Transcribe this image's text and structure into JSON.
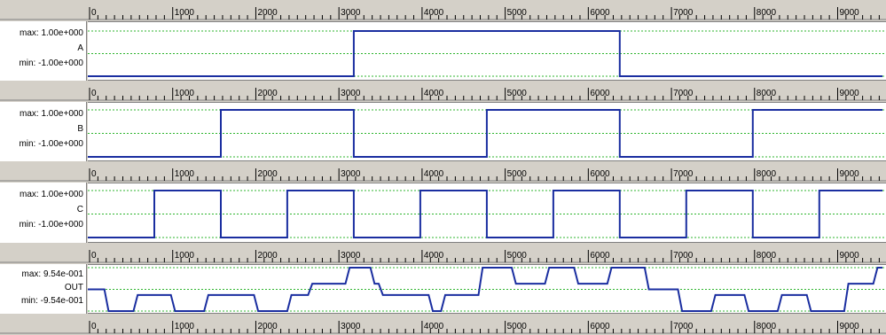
{
  "axis": {
    "tick_labels": [
      "0",
      "1000",
      "2000",
      "3000",
      "4000",
      "5000",
      "6000",
      "7000",
      "8000",
      "9000"
    ],
    "xmin": 0,
    "xmax": 9560
  },
  "colors": {
    "signal": "#1a2ea0",
    "grid": "#2fb52f",
    "ruler_bg": "#d4d0c8"
  },
  "panels": [
    {
      "name": "A",
      "max_label": "max: 1.00e+000",
      "min_label": "min: -1.00e+000",
      "chart_data": {
        "type": "line",
        "ylim": [
          -1,
          1
        ],
        "x": [
          0,
          3200,
          3200,
          6400,
          6400,
          9560
        ],
        "y": [
          -1,
          -1,
          1,
          1,
          -1,
          -1
        ]
      }
    },
    {
      "name": "B",
      "max_label": "max: 1.00e+000",
      "min_label": "min: -1.00e+000",
      "chart_data": {
        "type": "line",
        "ylim": [
          -1,
          1
        ],
        "x": [
          0,
          1600,
          1600,
          3200,
          3200,
          4800,
          4800,
          6400,
          6400,
          8000,
          8000,
          9560
        ],
        "y": [
          -1,
          -1,
          1,
          1,
          -1,
          -1,
          1,
          1,
          -1,
          -1,
          1,
          1
        ]
      }
    },
    {
      "name": "C",
      "max_label": "max: 1.00e+000",
      "min_label": "min: -1.00e+000",
      "chart_data": {
        "type": "line",
        "ylim": [
          -1,
          1
        ],
        "x": [
          0,
          800,
          800,
          1600,
          1600,
          2400,
          2400,
          3200,
          3200,
          4000,
          4000,
          4800,
          4800,
          5600,
          5600,
          6400,
          6400,
          7200,
          7200,
          8000,
          8000,
          8800,
          8800,
          9560
        ],
        "y": [
          -1,
          -1,
          1,
          1,
          -1,
          -1,
          1,
          1,
          -1,
          -1,
          1,
          1,
          -1,
          -1,
          1,
          1,
          -1,
          -1,
          1,
          1,
          -1,
          -1,
          1,
          1
        ]
      }
    },
    {
      "name": "OUT",
      "max_label": "max: 9.54e-001",
      "min_label": "min: -9.54e-001",
      "chart_data": {
        "type": "line",
        "ylim": [
          -0.954,
          0.954
        ],
        "x": [
          0,
          200,
          250,
          550,
          600,
          1000,
          1050,
          1400,
          1450,
          2000,
          2050,
          2400,
          2450,
          2650,
          2700,
          3100,
          3150,
          3400,
          3450,
          3500,
          3550,
          4100,
          4150,
          4250,
          4300,
          4700,
          4750,
          5100,
          5150,
          5500,
          5550,
          5850,
          5900,
          6250,
          6300,
          6700,
          6750,
          7100,
          7150,
          7500,
          7550,
          7900,
          7950,
          8300,
          8350,
          8650,
          8700,
          9100,
          9150,
          9450,
          9500,
          9560
        ],
        "y": [
          0,
          0,
          -0.954,
          -0.954,
          -0.25,
          -0.25,
          -0.954,
          -0.954,
          -0.25,
          -0.25,
          -0.954,
          -0.954,
          -0.25,
          -0.25,
          0.25,
          0.25,
          0.954,
          0.954,
          0.25,
          0.25,
          -0.25,
          -0.25,
          -0.954,
          -0.954,
          -0.25,
          -0.25,
          0.954,
          0.954,
          0.25,
          0.25,
          0.954,
          0.954,
          0.25,
          0.25,
          0.954,
          0.954,
          0,
          0,
          -0.954,
          -0.954,
          -0.25,
          -0.25,
          -0.954,
          -0.954,
          -0.25,
          -0.25,
          -0.954,
          -0.954,
          0.25,
          0.25,
          0.954,
          0.954
        ]
      }
    }
  ]
}
